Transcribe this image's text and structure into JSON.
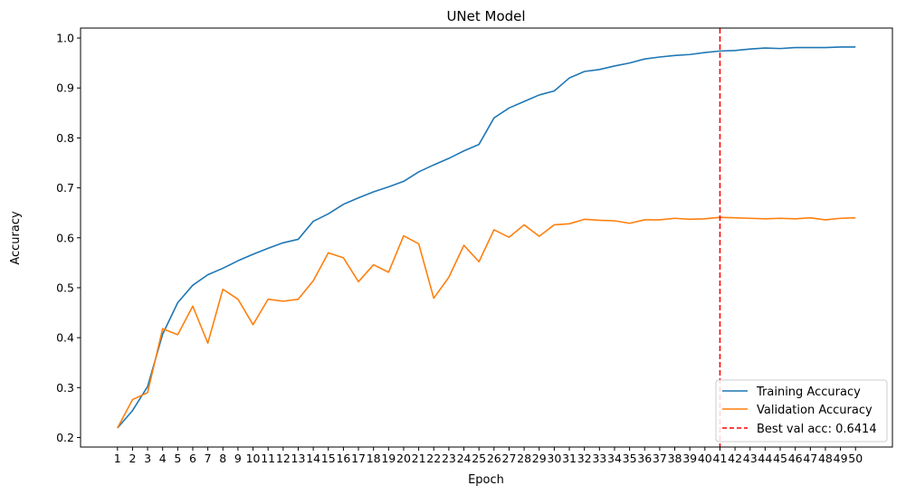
{
  "chart_data": {
    "type": "line",
    "title": "UNet Model",
    "xlabel": "Epoch",
    "ylabel": "Accuracy",
    "x": [
      1,
      2,
      3,
      4,
      5,
      6,
      7,
      8,
      9,
      10,
      11,
      12,
      13,
      14,
      15,
      16,
      17,
      18,
      19,
      20,
      21,
      22,
      23,
      24,
      25,
      26,
      27,
      28,
      29,
      30,
      31,
      32,
      33,
      34,
      35,
      36,
      37,
      38,
      39,
      40,
      41,
      42,
      43,
      44,
      45,
      46,
      47,
      48,
      49,
      50
    ],
    "xlim": [
      -1.45,
      52.45
    ],
    "ylim": [
      0.181,
      1.02
    ],
    "yticks": [
      0.2,
      0.3,
      0.4,
      0.5,
      0.6,
      0.7,
      0.8,
      0.9,
      1.0
    ],
    "ytick_labels": [
      "0.2",
      "0.3",
      "0.4",
      "0.5",
      "0.6",
      "0.7",
      "0.8",
      "0.9",
      "1.0"
    ],
    "grid": false,
    "legend_position": "lower-right",
    "series": [
      {
        "name": "Training Accuracy",
        "color": "#1f77b4",
        "values": [
          0.219,
          0.254,
          0.302,
          0.407,
          0.47,
          0.505,
          0.526,
          0.539,
          0.554,
          0.567,
          0.579,
          0.59,
          0.597,
          0.633,
          0.648,
          0.667,
          0.68,
          0.692,
          0.702,
          0.713,
          0.732,
          0.746,
          0.759,
          0.774,
          0.787,
          0.84,
          0.86,
          0.873,
          0.886,
          0.894,
          0.92,
          0.933,
          0.937,
          0.944,
          0.95,
          0.958,
          0.962,
          0.965,
          0.967,
          0.971,
          0.974,
          0.975,
          0.978,
          0.98,
          0.979,
          0.981,
          0.981,
          0.981,
          0.982,
          0.982
        ]
      },
      {
        "name": "Validation Accuracy",
        "color": "#ff7f0e",
        "values": [
          0.219,
          0.276,
          0.29,
          0.418,
          0.406,
          0.463,
          0.389,
          0.497,
          0.477,
          0.426,
          0.477,
          0.473,
          0.477,
          0.514,
          0.57,
          0.56,
          0.512,
          0.546,
          0.531,
          0.604,
          0.588,
          0.479,
          0.521,
          0.585,
          0.552,
          0.616,
          0.601,
          0.626,
          0.603,
          0.626,
          0.628,
          0.637,
          0.635,
          0.634,
          0.629,
          0.636,
          0.636,
          0.639,
          0.637,
          0.638,
          0.641,
          0.64,
          0.639,
          0.638,
          0.639,
          0.638,
          0.64,
          0.636,
          0.639,
          0.64
        ]
      }
    ],
    "reference_line": {
      "label": "Best val acc: 0.6414",
      "x": 41,
      "color": "#ff0000",
      "style": "dashed"
    }
  }
}
